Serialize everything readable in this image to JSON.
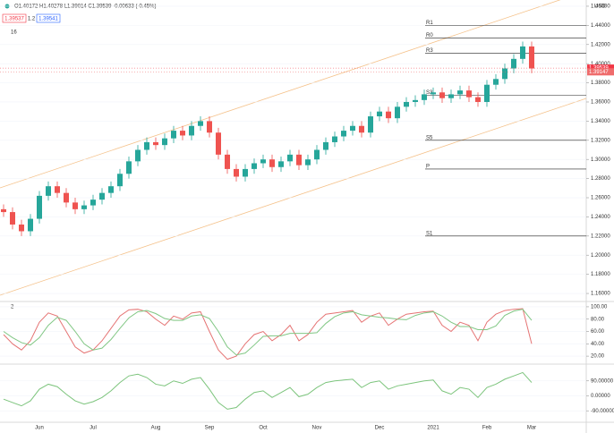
{
  "header": {
    "ohlc": "O1.40172 H1.40278 L1.39014 C1.39539 -0.00633 (-0.45%)",
    "sell": "1.39537",
    "spread": "1.2",
    "buy": "1.39541",
    "currency": "USD",
    "pane1": "16",
    "pane2": "2"
  },
  "chart_data": [
    {
      "type": "candlestick",
      "categories": [
        null,
        null,
        null,
        null,
        "Jun",
        null,
        null,
        null,
        null,
        null,
        "Jul",
        null,
        null,
        null,
        null,
        null,
        null,
        "Aug",
        null,
        null,
        null,
        null,
        null,
        "Sep",
        null,
        null,
        null,
        null,
        null,
        "Oct",
        null,
        null,
        null,
        null,
        null,
        "Nov",
        null,
        null,
        null,
        null,
        null,
        null,
        "Dec",
        null,
        null,
        null,
        null,
        null,
        "2021",
        null,
        null,
        null,
        null,
        null,
        "Feb",
        null,
        null,
        null,
        null,
        "Mar"
      ],
      "open": [
        1.248,
        1.245,
        1.232,
        1.225,
        1.238,
        1.262,
        1.272,
        1.265,
        1.255,
        1.248,
        1.252,
        1.258,
        1.265,
        1.272,
        1.285,
        1.298,
        1.31,
        1.318,
        1.315,
        1.322,
        1.33,
        1.325,
        1.335,
        1.34,
        1.328,
        1.305,
        1.29,
        1.282,
        1.29,
        1.296,
        1.3,
        1.292,
        1.298,
        1.305,
        1.294,
        1.3,
        1.31,
        1.318,
        1.324,
        1.33,
        1.335,
        1.328,
        1.345,
        1.35,
        1.343,
        1.355,
        1.36,
        1.362,
        1.368,
        1.37,
        1.364,
        1.368,
        1.372,
        1.365,
        1.36,
        1.378,
        1.384,
        1.395,
        1.405,
        1.418
      ],
      "high": [
        1.253,
        1.25,
        1.237,
        1.243,
        1.267,
        1.277,
        1.277,
        1.27,
        1.26,
        1.257,
        1.263,
        1.27,
        1.277,
        1.29,
        1.303,
        1.315,
        1.323,
        1.323,
        1.327,
        1.335,
        1.335,
        1.34,
        1.345,
        1.345,
        1.333,
        1.31,
        1.295,
        1.295,
        1.301,
        1.305,
        1.305,
        1.303,
        1.31,
        1.31,
        1.305,
        1.315,
        1.323,
        1.329,
        1.335,
        1.34,
        1.34,
        1.35,
        1.355,
        1.355,
        1.36,
        1.365,
        1.367,
        1.373,
        1.375,
        1.375,
        1.373,
        1.377,
        1.377,
        1.37,
        1.383,
        1.389,
        1.4,
        1.41,
        1.423,
        1.423
      ],
      "low": [
        1.24,
        1.227,
        1.22,
        1.22,
        1.233,
        1.257,
        1.26,
        1.25,
        1.243,
        1.243,
        1.247,
        1.253,
        1.26,
        1.267,
        1.28,
        1.293,
        1.305,
        1.31,
        1.31,
        1.317,
        1.32,
        1.32,
        1.33,
        1.323,
        1.3,
        1.285,
        1.277,
        1.277,
        1.285,
        1.291,
        1.287,
        1.287,
        1.293,
        1.289,
        1.289,
        1.295,
        1.305,
        1.313,
        1.319,
        1.325,
        1.323,
        1.323,
        1.34,
        1.338,
        1.338,
        1.35,
        1.355,
        1.357,
        1.363,
        1.359,
        1.359,
        1.363,
        1.36,
        1.355,
        1.355,
        1.373,
        1.379,
        1.39,
        1.4,
        1.39
      ],
      "close": [
        1.245,
        1.232,
        1.225,
        1.238,
        1.262,
        1.272,
        1.265,
        1.255,
        1.248,
        1.252,
        1.258,
        1.265,
        1.272,
        1.285,
        1.298,
        1.31,
        1.318,
        1.315,
        1.322,
        1.33,
        1.325,
        1.335,
        1.34,
        1.328,
        1.305,
        1.29,
        1.282,
        1.29,
        1.296,
        1.3,
        1.292,
        1.298,
        1.305,
        1.294,
        1.3,
        1.31,
        1.318,
        1.324,
        1.33,
        1.335,
        1.328,
        1.345,
        1.35,
        1.343,
        1.355,
        1.36,
        1.362,
        1.368,
        1.37,
        1.364,
        1.368,
        1.372,
        1.365,
        1.36,
        1.378,
        1.384,
        1.395,
        1.405,
        1.418,
        1.395
      ],
      "up_color": "#26a69a",
      "down_color": "#ef5350",
      "ylim": [
        1.1535,
        1.4665
      ],
      "yticks": [
        {
          "value": 1.46,
          "label": "1.46000"
        },
        {
          "value": 1.44,
          "label": "1.44000"
        },
        {
          "value": 1.42,
          "label": "1.42000"
        },
        {
          "value": 1.4,
          "label": "1.40000"
        },
        {
          "value": 1.38,
          "label": "1.38000"
        },
        {
          "value": 1.36,
          "label": "1.36000"
        },
        {
          "value": 1.34,
          "label": "1.34000"
        },
        {
          "value": 1.32,
          "label": "1.32000"
        },
        {
          "value": 1.3,
          "label": "1.30000"
        },
        {
          "value": 1.28,
          "label": "1.28000"
        },
        {
          "value": 1.26,
          "label": "1.26000"
        },
        {
          "value": 1.24,
          "label": "1.24000"
        },
        {
          "value": 1.22,
          "label": "1.22000"
        },
        {
          "value": 1.2,
          "label": "1.20000"
        },
        {
          "value": 1.18,
          "label": "1.18000"
        },
        {
          "value": 1.16,
          "label": "1.16000"
        }
      ],
      "levels": [
        {
          "label": "R1",
          "value": 1.44
        },
        {
          "label": "R0",
          "value": 1.427
        },
        {
          "label": "R3",
          "value": 1.411
        },
        {
          "label": "S3",
          "value": 1.367
        },
        {
          "label": "S5",
          "value": 1.32
        },
        {
          "label": "P",
          "value": 1.29
        },
        {
          "label": "S1",
          "value": 1.22
        }
      ],
      "price_tags": [
        {
          "label": "1.39539",
          "value": 1.39539,
          "color": "#f23645"
        },
        {
          "label": "1.39147",
          "value": 1.39147,
          "color": "#ef6c6c"
        }
      ]
    },
    {
      "type": "line",
      "ylim": [
        10,
        105.7
      ],
      "yticks": [
        {
          "value": 100,
          "label": "100.00"
        },
        {
          "value": 80,
          "label": "80.00"
        },
        {
          "value": 60,
          "label": "60.00"
        },
        {
          "value": 40,
          "label": "40.00"
        },
        {
          "value": 20,
          "label": "20.00"
        }
      ],
      "series": [
        {
          "color": "#e57373",
          "values": [
            55,
            40,
            30,
            45,
            75,
            90,
            85,
            60,
            35,
            25,
            30,
            45,
            65,
            85,
            95,
            96,
            92,
            80,
            70,
            85,
            80,
            90,
            92,
            60,
            30,
            15,
            20,
            40,
            55,
            60,
            45,
            55,
            70,
            45,
            55,
            75,
            88,
            90,
            92,
            94,
            75,
            85,
            90,
            70,
            80,
            88,
            90,
            92,
            93,
            70,
            60,
            75,
            70,
            45,
            75,
            88,
            94,
            96,
            97,
            40
          ]
        },
        {
          "color": "#81c784",
          "values": [
            60,
            50,
            42,
            38,
            50,
            70,
            83,
            78,
            60,
            40,
            30,
            33,
            47,
            65,
            82,
            92,
            94,
            89,
            81,
            78,
            78,
            85,
            87,
            81,
            60,
            35,
            22,
            25,
            38,
            52,
            53,
            53,
            57,
            57,
            57,
            58,
            73,
            84,
            90,
            92,
            87,
            85,
            83,
            82,
            80,
            79,
            86,
            90,
            92,
            85,
            75,
            68,
            68,
            63,
            63,
            69,
            86,
            93,
            96,
            78
          ]
        }
      ]
    },
    {
      "type": "line",
      "ylim": [
        -148,
        180
      ],
      "yticks": [
        {
          "value": 90,
          "label": "90.00000"
        },
        {
          "value": 0,
          "label": "0.00000"
        },
        {
          "value": -90,
          "label": "-90.00000"
        }
      ],
      "series": [
        {
          "color": "#7cc47c",
          "values": [
            -20,
            -40,
            -60,
            -30,
            40,
            70,
            55,
            10,
            -30,
            -50,
            -35,
            -10,
            30,
            80,
            120,
            130,
            110,
            70,
            60,
            90,
            75,
            100,
            110,
            40,
            -40,
            -80,
            -70,
            -20,
            20,
            30,
            -10,
            20,
            50,
            -5,
            10,
            50,
            80,
            90,
            95,
            100,
            50,
            80,
            90,
            40,
            60,
            70,
            80,
            90,
            95,
            30,
            10,
            50,
            40,
            -10,
            50,
            70,
            100,
            120,
            140,
            80
          ]
        }
      ]
    }
  ]
}
